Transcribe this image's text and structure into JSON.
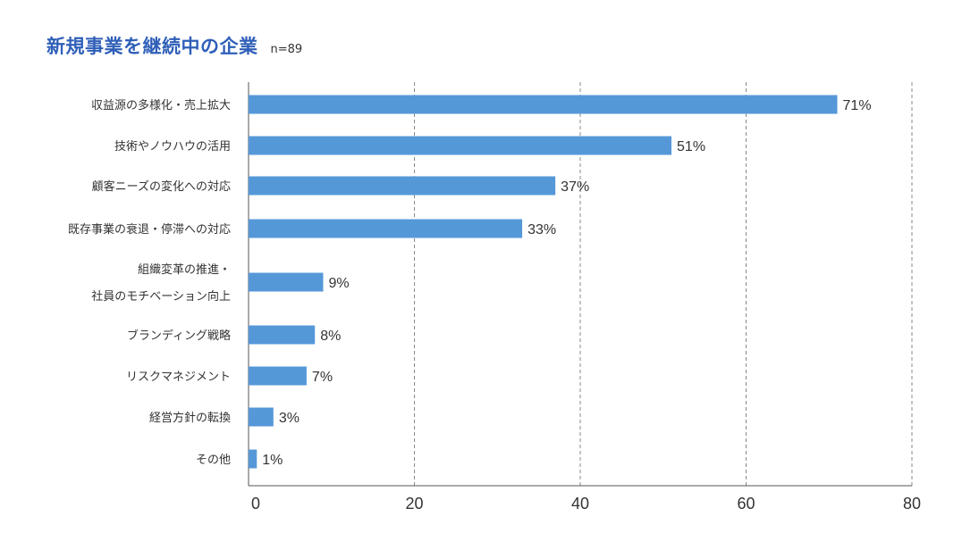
{
  "title": "新規事業を継続中の企業",
  "sample": "n=89",
  "colors": {
    "bar": "#5598d8",
    "title": "#2f5fb8",
    "grid": "#888888",
    "axis": "#555555"
  },
  "chart_data": {
    "type": "bar",
    "orientation": "horizontal",
    "categories": [
      [
        "収益源の多様化・売上拡大"
      ],
      [
        "技術やノウハウの活用"
      ],
      [
        "顧客ニーズの変化への対応"
      ],
      [
        "既存事業の衰退・停滞への対応"
      ],
      [
        "組織変革の推進・",
        "社員のモチベーション向上"
      ],
      [
        "ブランディング戦略"
      ],
      [
        "リスクマネジメント"
      ],
      [
        "経営方針の転換"
      ],
      [
        "その他"
      ]
    ],
    "values": [
      71,
      51,
      37,
      33,
      9,
      8,
      7,
      3,
      1
    ],
    "value_labels": [
      "71%",
      "51%",
      "37%",
      "33%",
      "9%",
      "8%",
      "7%",
      "3%",
      "1%"
    ],
    "xlim": [
      0,
      80
    ],
    "xticks": [
      0,
      20,
      40,
      60,
      80
    ],
    "grid": "vertical dashed"
  }
}
